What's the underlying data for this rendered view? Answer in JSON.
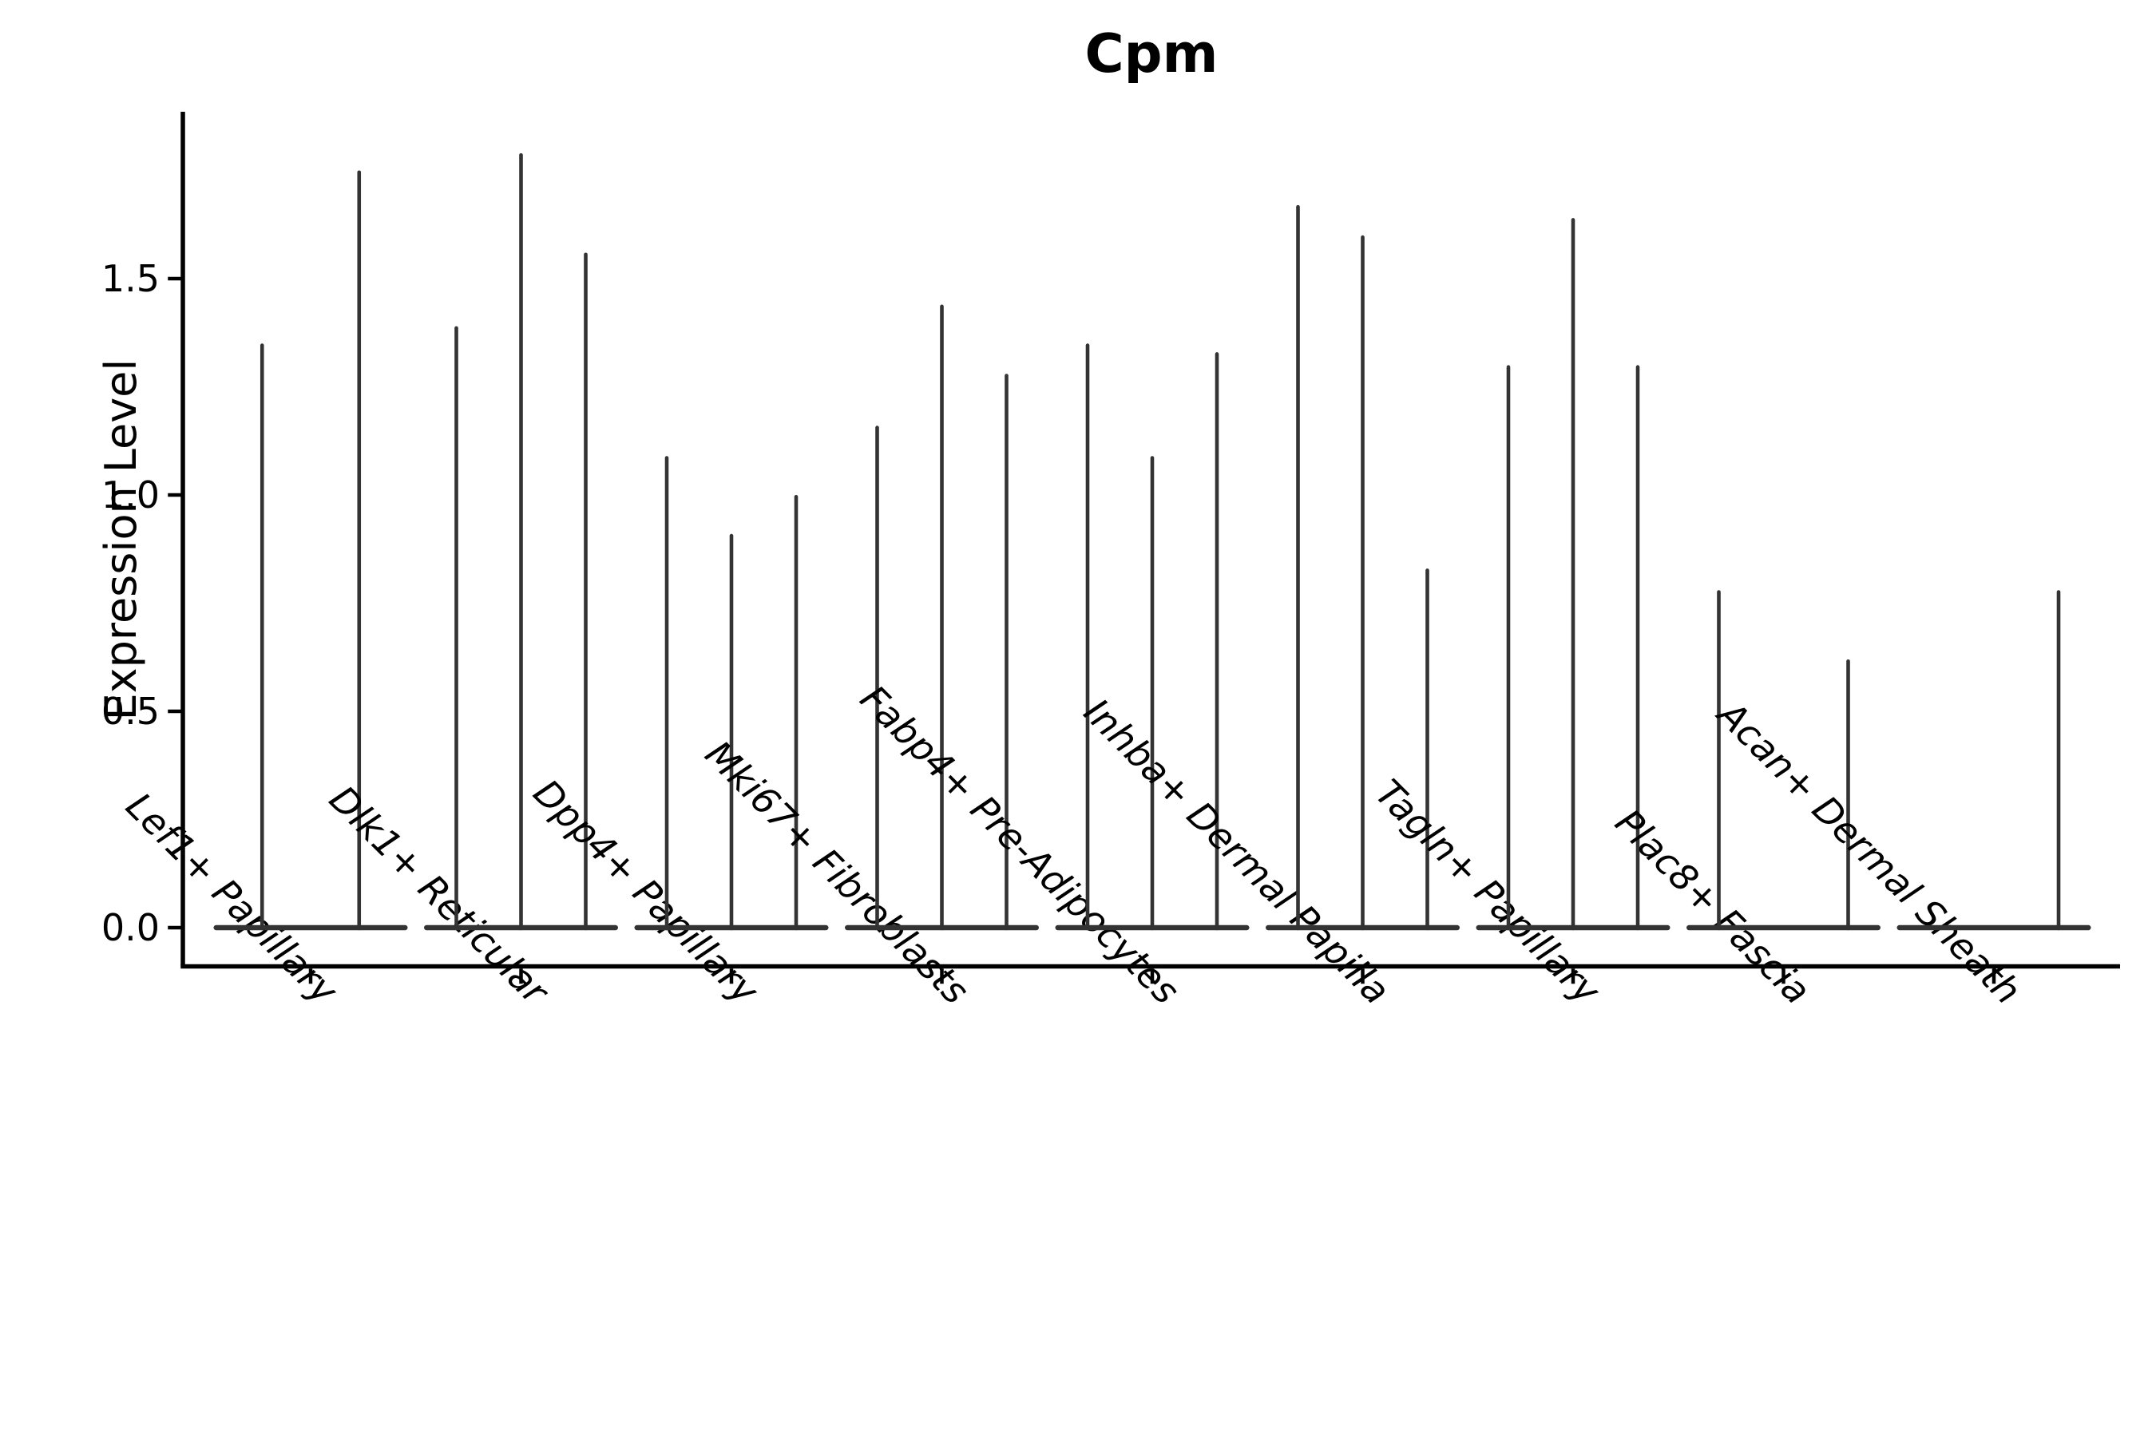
{
  "chart_data": {
    "type": "violin",
    "title": "Cpm",
    "ylabel": "Expression Level",
    "xlabel": "",
    "grid": false,
    "legend": "none",
    "ylim": [
      -0.09,
      1.88
    ],
    "yticks": [
      {
        "label": "0.0",
        "value": 0.0
      },
      {
        "label": "0.5",
        "value": 0.5
      },
      {
        "label": "1.0",
        "value": 1.0
      },
      {
        "label": "1.5",
        "value": 1.5
      }
    ],
    "categories": [
      "Lef1+ Papillary",
      "Dlk1+ Reticular",
      "Dpp4+ Papillary",
      "Mki67+ Fibroblasts",
      "Fabp4+ Pre-Adipocytes",
      "Inhba+ Dermal Papilla",
      "Tagln+ Papillary",
      "Plac8+ Fascia",
      "Acan+ Dermal Sheath"
    ],
    "description": "Violin plot of Cpm expression; each category holds narrow sub-violins massed at 0 with thin spikes up to the max expression value; null means a sub-violin with no expression spike",
    "groups": [
      {
        "category": "Lef1+ Papillary",
        "spike_maxima": [
          1.35,
          1.75
        ]
      },
      {
        "category": "Dlk1+ Reticular",
        "spike_maxima": [
          1.39,
          1.79,
          1.56
        ]
      },
      {
        "category": "Dpp4+ Papillary",
        "spike_maxima": [
          1.09,
          0.91,
          1.0
        ]
      },
      {
        "category": "Mki67+ Fibroblasts",
        "spike_maxima": [
          1.16,
          1.44,
          1.28
        ]
      },
      {
        "category": "Fabp4+ Pre-Adipocytes",
        "spike_maxima": [
          1.35,
          1.09,
          1.33
        ]
      },
      {
        "category": "Inhba+ Dermal Papilla",
        "spike_maxima": [
          1.67,
          1.6,
          0.83
        ]
      },
      {
        "category": "Tagln+ Papillary",
        "spike_maxima": [
          1.3,
          1.64,
          1.3
        ]
      },
      {
        "category": "Plac8+ Fascia",
        "spike_maxima": [
          0.78,
          null,
          0.62
        ]
      },
      {
        "category": "Acan+ Dermal Sheath",
        "spike_maxima": [
          null,
          null,
          0.78
        ]
      }
    ],
    "colors": {
      "violin": "#333333",
      "axis": "#000000",
      "text": "#000000",
      "background": "#ffffff"
    }
  }
}
